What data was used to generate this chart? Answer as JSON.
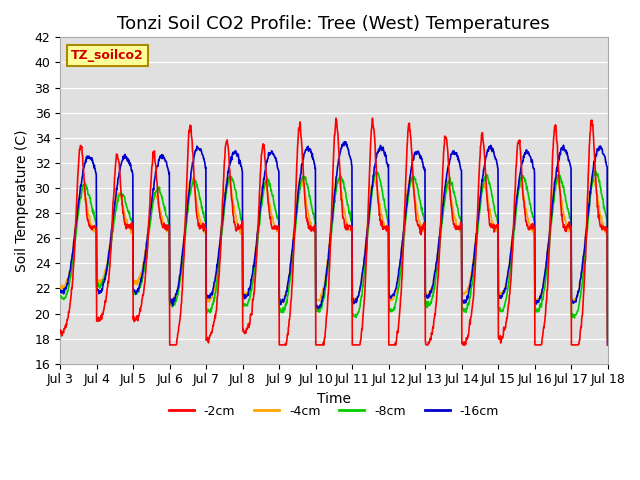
{
  "title": "Tonzi Soil CO2 Profile: Tree (West) Temperatures",
  "xlabel": "Time",
  "ylabel": "Soil Temperature (C)",
  "ylim": [
    16,
    42
  ],
  "xlim": [
    0,
    15
  ],
  "yticks": [
    16,
    18,
    20,
    22,
    24,
    26,
    28,
    30,
    32,
    34,
    36,
    38,
    40,
    42
  ],
  "xtick_labels": [
    "Jul 3",
    "Jul 4",
    "Jul 5",
    "Jul 6",
    "Jul 7",
    "Jul 8",
    "Jul 9",
    "Jul 10",
    "Jul 11",
    "Jul 12",
    "Jul 13",
    "Jul 14",
    "Jul 15",
    "Jul 16",
    "Jul 17",
    "Jul 18"
  ],
  "series": {
    "-2cm": {
      "color": "#ff0000",
      "lw": 1.2
    },
    "-4cm": {
      "color": "#ffa500",
      "lw": 1.2
    },
    "-8cm": {
      "color": "#00cc00",
      "lw": 1.2
    },
    "-16cm": {
      "color": "#0000cc",
      "lw": 1.2
    }
  },
  "legend_label_box": "TZ_soilco2",
  "legend_label_box_color": "#ffff99",
  "legend_label_box_text_color": "#cc0000",
  "background_color": "#e0e0e0",
  "title_fontsize": 13,
  "axis_label_fontsize": 10,
  "tick_fontsize": 9
}
